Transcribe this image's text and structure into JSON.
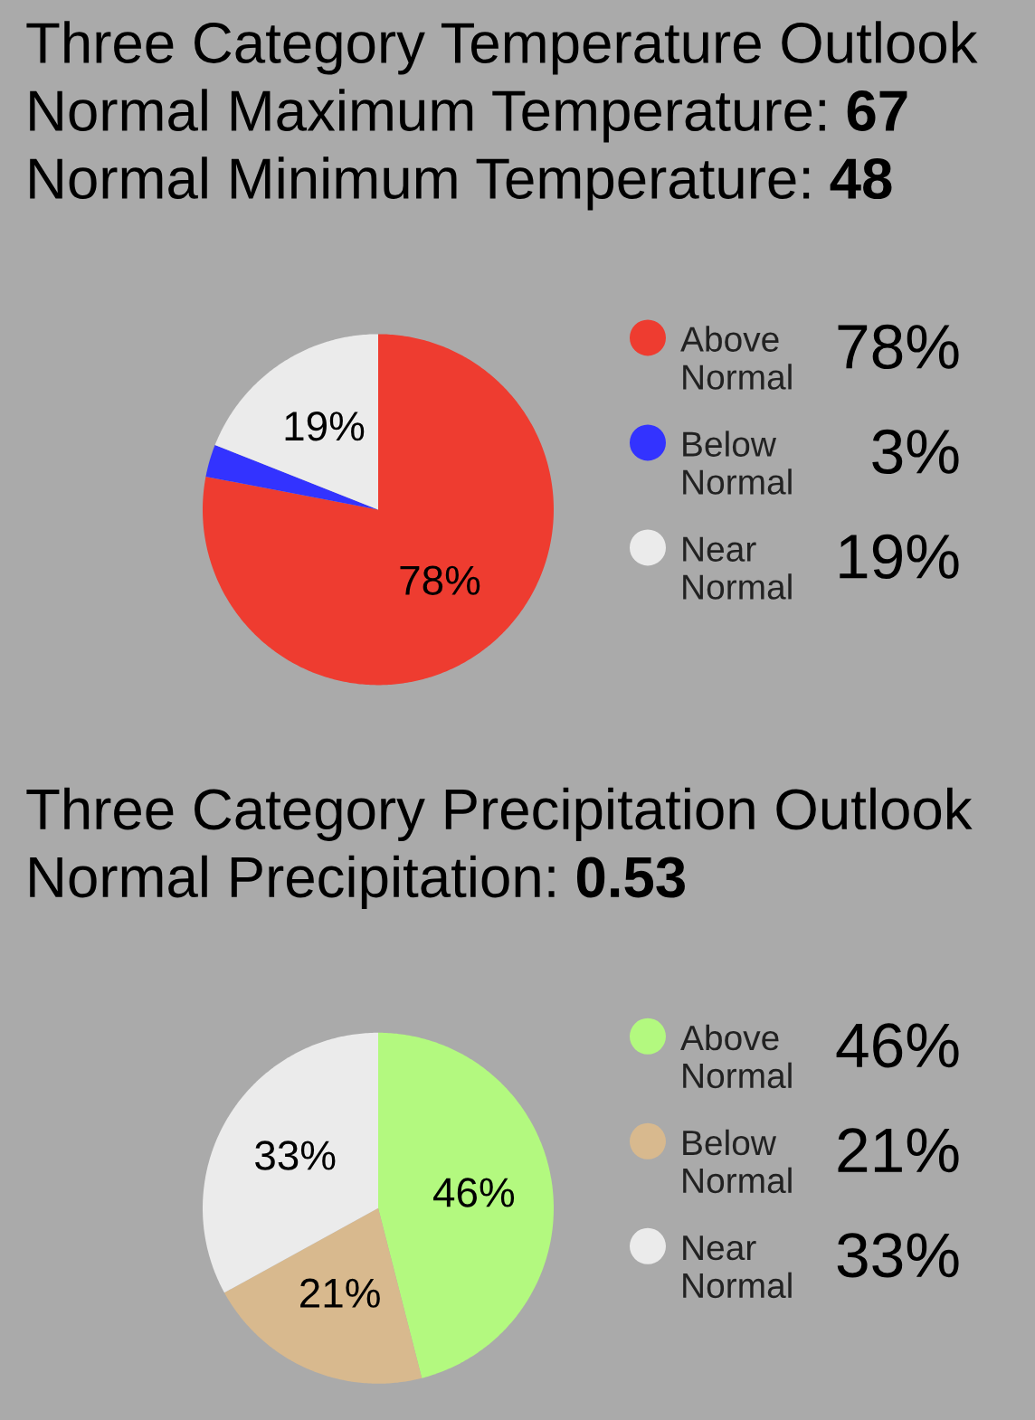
{
  "chart_data": [
    {
      "type": "pie",
      "title": "Three Category Temperature Outlook",
      "subtitle": "Normal Maximum Temperature: 67\nNormal Minimum Temperature: 48",
      "categories": [
        "Above Normal",
        "Below Normal",
        "Near Normal"
      ],
      "values": [
        78,
        3,
        19
      ],
      "colors": [
        "#ee3c30",
        "#3333ff",
        "#ebebeb"
      ],
      "value_labels": [
        "78%",
        "3%",
        "19%"
      ],
      "legend": "right"
    },
    {
      "type": "pie",
      "title": "Three Category Precipitation Outlook",
      "subtitle": "Normal Precipitation: 0.53",
      "categories": [
        "Above Normal",
        "Below Normal",
        "Near Normal"
      ],
      "values": [
        46,
        21,
        33
      ],
      "colors": [
        "#b3f97f",
        "#d8b98e",
        "#ebebeb"
      ],
      "value_labels": [
        "46%",
        "21%",
        "33%"
      ],
      "legend": "right"
    }
  ]
}
